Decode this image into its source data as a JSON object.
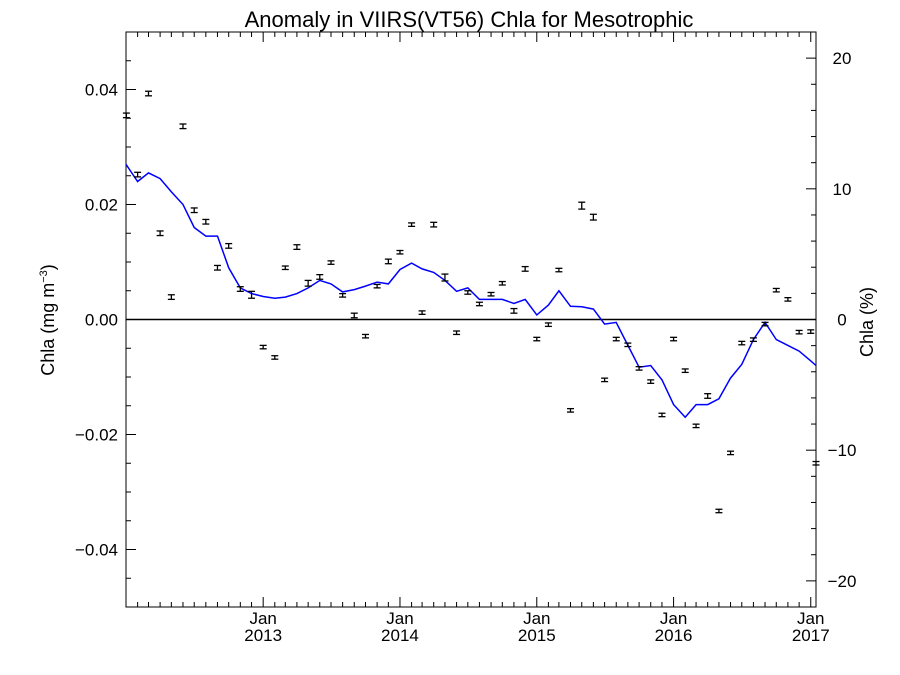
{
  "chart_data": {
    "type": "scatter",
    "title": "Anomaly in VIIRS(VT56) Chla for Mesotrophic",
    "ylabel_left": "Chla (mg m",
    "ylabel_left_superscript": "−3",
    "ylabel_left_suffix": ")",
    "ylabel_right": "Chla (%)",
    "xlim": [
      "2012-01-01",
      "2017-01-15"
    ],
    "ylim_left": [
      -0.05,
      0.05
    ],
    "ylim_right": [
      -22,
      22
    ],
    "grid": false,
    "legend": "none",
    "colors": {
      "line": "#0000ff",
      "points": "#000000",
      "zero_line": "#000000"
    },
    "y_ticks_left": [
      {
        "value": 0.04,
        "label": "0.04"
      },
      {
        "value": 0.02,
        "label": "0.02"
      },
      {
        "value": 0.0,
        "label": "0.00"
      },
      {
        "value": -0.02,
        "label": "−0.02"
      },
      {
        "value": -0.04,
        "label": "−0.04"
      }
    ],
    "y_ticks_right": [
      {
        "value": 20,
        "label": "20"
      },
      {
        "value": 10,
        "label": "10"
      },
      {
        "value": 0,
        "label": "0"
      },
      {
        "value": -10,
        "label": "−10"
      },
      {
        "value": -20,
        "label": "−20"
      }
    ],
    "x_ticks": [
      {
        "date": "2013-01-01",
        "month": "Jan",
        "year": "2013"
      },
      {
        "date": "2014-01-01",
        "month": "Jan",
        "year": "2014"
      },
      {
        "date": "2015-01-01",
        "month": "Jan",
        "year": "2015"
      },
      {
        "date": "2016-01-01",
        "month": "Jan",
        "year": "2016"
      },
      {
        "date": "2017-01-01",
        "month": "Jan",
        "year": "2017"
      }
    ],
    "series": [
      {
        "kind": "points_with_errorbars",
        "x": [
          "2012-01-02",
          "2012-02-01",
          "2012-03-01",
          "2012-04-01",
          "2012-05-01",
          "2012-06-01",
          "2012-07-01",
          "2012-08-01",
          "2012-09-01",
          "2012-10-01",
          "2012-11-01",
          "2012-12-01",
          "2013-01-01",
          "2013-02-01",
          "2013-03-01",
          "2013-04-01",
          "2013-05-01",
          "2013-06-01",
          "2013-07-01",
          "2013-08-01",
          "2013-09-01",
          "2013-10-01",
          "2013-11-01",
          "2013-12-01",
          "2014-01-01",
          "2014-02-01",
          "2014-03-01",
          "2014-04-01",
          "2014-05-01",
          "2014-06-01",
          "2014-07-01",
          "2014-08-01",
          "2014-09-01",
          "2014-10-01",
          "2014-11-01",
          "2014-12-01",
          "2015-01-01",
          "2015-02-01",
          "2015-03-01",
          "2015-04-01",
          "2015-05-01",
          "2015-06-01",
          "2015-07-01",
          "2015-08-01",
          "2015-09-01",
          "2015-10-01",
          "2015-11-01",
          "2015-12-01",
          "2016-01-01",
          "2016-02-01",
          "2016-03-01",
          "2016-04-01",
          "2016-05-01",
          "2016-06-01",
          "2016-07-01",
          "2016-08-01",
          "2016-09-01",
          "2016-10-01",
          "2016-11-01",
          "2016-12-01",
          "2017-01-01",
          "2017-01-15"
        ],
        "values": [
          0.0355,
          0.0252,
          0.0393,
          0.015,
          0.0039,
          0.0336,
          0.019,
          0.017,
          0.009,
          0.0128,
          0.0053,
          0.0043,
          -0.0048,
          -0.0066,
          0.009,
          0.0126,
          0.0063,
          0.0074,
          0.0099,
          0.0042,
          0.0007,
          -0.0029,
          0.0058,
          0.0101,
          0.0117,
          0.0165,
          0.0012,
          0.0165,
          0.0073,
          -0.0023,
          0.0047,
          0.0027,
          0.0044,
          0.0063,
          0.0015,
          0.0088,
          -0.0034,
          -0.0009,
          0.0086,
          -0.0158,
          0.0198,
          0.0178,
          -0.0105,
          -0.0034,
          -0.0044,
          -0.0085,
          -0.0108,
          -0.0166,
          -0.0034,
          -0.0089,
          -0.0185,
          -0.0133,
          -0.0333,
          -0.0232,
          -0.0041,
          -0.0035,
          -0.0008,
          0.0051,
          0.0035,
          -0.0022,
          -0.0021,
          -0.025
        ],
        "errors": [
          0.0004,
          0.0004,
          0.0004,
          0.0004,
          0.0004,
          0.0004,
          0.0004,
          0.0004,
          0.0004,
          0.0004,
          0.0004,
          0.0006,
          0.0003,
          0.0003,
          0.0003,
          0.0004,
          0.0005,
          0.0004,
          0.0003,
          0.0003,
          0.0004,
          0.0003,
          0.0003,
          0.0004,
          0.0003,
          0.0003,
          0.0003,
          0.0004,
          0.0006,
          0.0003,
          0.0003,
          0.0003,
          0.0003,
          0.0003,
          0.0004,
          0.0004,
          0.0003,
          0.0003,
          0.0003,
          0.0003,
          0.0006,
          0.0005,
          0.0003,
          0.0003,
          0.0003,
          0.0003,
          0.0003,
          0.0003,
          0.0003,
          0.0003,
          0.0003,
          0.0004,
          0.0003,
          0.0003,
          0.0003,
          0.0003,
          0.0003,
          0.0003,
          0.0003,
          0.0003,
          0.0003,
          0.0003
        ]
      },
      {
        "kind": "line",
        "x": [
          "2012-01-01",
          "2012-02-01",
          "2012-03-01",
          "2012-04-01",
          "2012-05-01",
          "2012-06-01",
          "2012-07-01",
          "2012-08-01",
          "2012-09-01",
          "2012-10-01",
          "2012-11-01",
          "2012-12-01",
          "2013-01-01",
          "2013-02-01",
          "2013-03-01",
          "2013-04-01",
          "2013-05-01",
          "2013-06-01",
          "2013-07-01",
          "2013-08-01",
          "2013-09-01",
          "2013-10-01",
          "2013-11-01",
          "2013-12-01",
          "2014-01-01",
          "2014-02-01",
          "2014-03-01",
          "2014-04-01",
          "2014-05-01",
          "2014-06-01",
          "2014-07-01",
          "2014-08-01",
          "2014-09-01",
          "2014-10-01",
          "2014-11-01",
          "2014-12-01",
          "2015-01-01",
          "2015-02-01",
          "2015-03-01",
          "2015-04-01",
          "2015-05-01",
          "2015-06-01",
          "2015-07-01",
          "2015-08-01",
          "2015-09-01",
          "2015-10-01",
          "2015-11-01",
          "2015-12-01",
          "2016-01-01",
          "2016-02-01",
          "2016-03-01",
          "2016-04-01",
          "2016-05-01",
          "2016-06-01",
          "2016-07-01",
          "2016-08-01",
          "2016-09-01",
          "2016-10-01",
          "2016-11-01",
          "2016-12-01",
          "2017-01-01",
          "2017-01-15"
        ],
        "values": [
          0.027,
          0.024,
          0.0255,
          0.0245,
          0.0222,
          0.02,
          0.016,
          0.0145,
          0.0145,
          0.009,
          0.0055,
          0.0045,
          0.004,
          0.0037,
          0.0039,
          0.0045,
          0.0055,
          0.0068,
          0.0062,
          0.0048,
          0.0052,
          0.0058,
          0.0065,
          0.0062,
          0.0087,
          0.0098,
          0.0088,
          0.0082,
          0.0068,
          0.0049,
          0.0055,
          0.0035,
          0.0035,
          0.0035,
          0.0028,
          0.0035,
          0.0008,
          0.0025,
          0.005,
          0.0023,
          0.0022,
          0.0018,
          -0.0008,
          -0.0005,
          -0.0045,
          -0.0083,
          -0.008,
          -0.0105,
          -0.0148,
          -0.017,
          -0.0148,
          -0.0148,
          -0.0138,
          -0.0102,
          -0.0078,
          -0.0035,
          -0.0005,
          -0.0035,
          -0.0045,
          -0.0055,
          -0.0072,
          -0.008
        ]
      }
    ]
  }
}
